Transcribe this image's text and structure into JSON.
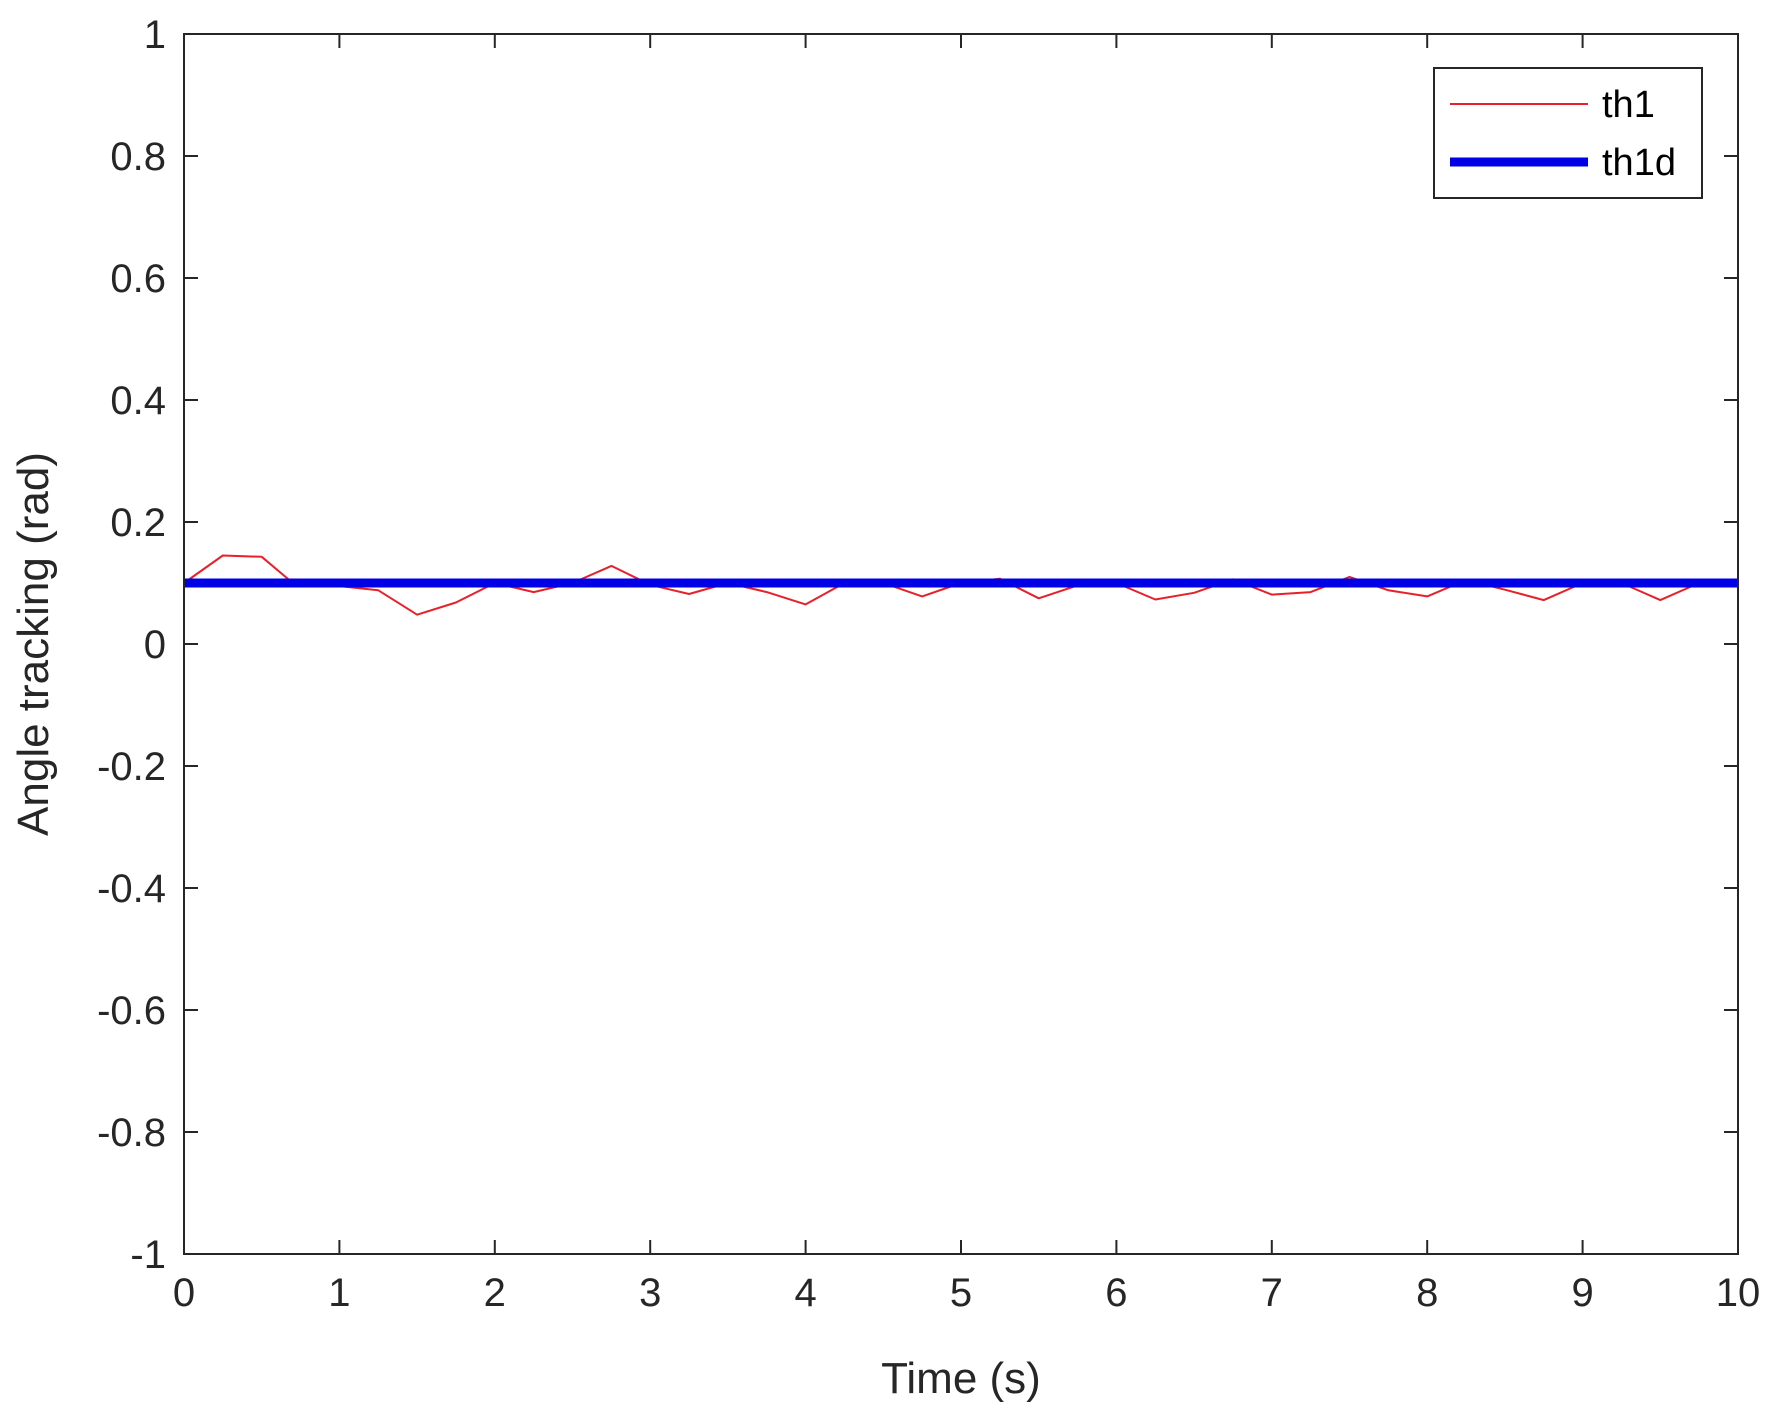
{
  "chart_data": {
    "type": "line",
    "title": "",
    "xlabel": "Time (s)",
    "ylabel": "Angle tracking (rad)",
    "xlim": [
      0,
      10
    ],
    "ylim": [
      -1,
      1
    ],
    "xticks": [
      0,
      1,
      2,
      3,
      4,
      5,
      6,
      7,
      8,
      9,
      10
    ],
    "yticks": [
      -1,
      -0.8,
      -0.6,
      -0.4,
      -0.2,
      0,
      0.2,
      0.4,
      0.6,
      0.8,
      1
    ],
    "grid": false,
    "legend_position": "top-right",
    "series": [
      {
        "name": "th1",
        "color": "#e8202a",
        "style": "thin",
        "x": [
          0,
          0.25,
          0.5,
          0.7,
          1.0,
          1.25,
          1.5,
          1.75,
          2.0,
          2.25,
          2.5,
          2.75,
          3.0,
          3.25,
          3.5,
          3.75,
          4.0,
          4.25,
          4.5,
          4.75,
          5.0,
          5.25,
          5.5,
          5.75,
          6.0,
          6.25,
          6.5,
          6.75,
          7.0,
          7.25,
          7.5,
          7.75,
          8.0,
          8.25,
          8.5,
          8.75,
          9.0,
          9.25,
          9.5,
          9.75,
          10.0
        ],
        "y": [
          0.1,
          0.145,
          0.143,
          0.1,
          0.095,
          0.088,
          0.048,
          0.068,
          0.1,
          0.085,
          0.1,
          0.128,
          0.097,
          0.082,
          0.1,
          0.085,
          0.065,
          0.1,
          0.1,
          0.078,
          0.1,
          0.107,
          0.075,
          0.096,
          0.1,
          0.073,
          0.084,
          0.106,
          0.081,
          0.085,
          0.11,
          0.088,
          0.078,
          0.105,
          0.089,
          0.072,
          0.1,
          0.1,
          0.072,
          0.1,
          0.1
        ]
      },
      {
        "name": "th1d",
        "color": "#0000e6",
        "style": "thick",
        "x": [
          0,
          10
        ],
        "y": [
          0.1,
          0.1
        ]
      }
    ]
  }
}
